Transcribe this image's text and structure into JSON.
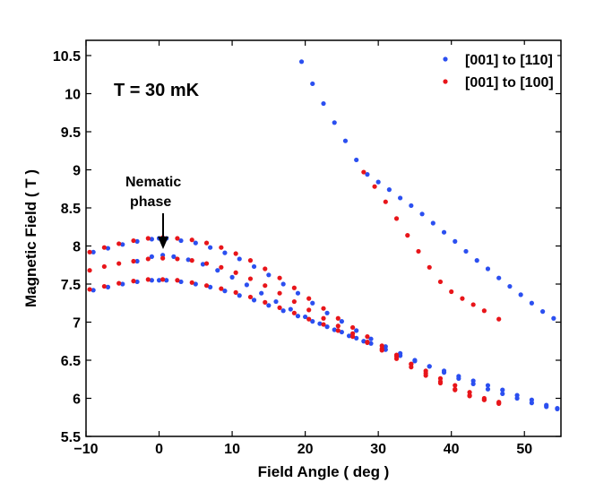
{
  "chart_data": {
    "type": "scatter",
    "title": "",
    "xlabel": "Field Angle ( deg )",
    "ylabel": "Magnetic Field ( T )",
    "xlim": [
      -10,
      55
    ],
    "ylim": [
      5.5,
      10.7
    ],
    "xticks": [
      -10,
      0,
      10,
      20,
      30,
      40,
      50
    ],
    "yticks": [
      5.5,
      6,
      6.5,
      7,
      7.5,
      8,
      8.5,
      9,
      9.5,
      10,
      10.5
    ],
    "xtick_labels": [
      "−10",
      "0",
      "10",
      "20",
      "30",
      "40",
      "50"
    ],
    "ytick_labels": [
      "5.5",
      "6",
      "6.5",
      "7",
      "7.5",
      "8",
      "8.5",
      "9",
      "9.5",
      "10",
      "10.5"
    ],
    "grid": false,
    "legend_position": "top-right",
    "annotations": {
      "temperature": "T = 30 mK",
      "nematic_line1": "Nematic",
      "nematic_line2": "phase",
      "arrow_target": [
        0.5,
        7.94
      ]
    },
    "series": [
      {
        "name": "[001] to [110]",
        "color": "#2b4ff0",
        "x": [
          -9,
          -7,
          -5,
          -3,
          -1,
          0,
          1,
          3,
          5,
          7,
          9,
          11,
          13,
          15,
          17,
          19,
          21,
          23,
          25,
          27,
          29,
          31,
          33,
          35,
          37,
          39,
          41,
          43,
          45,
          47,
          49,
          51,
          53,
          54.5,
          -9,
          -7,
          -5,
          -3,
          -1,
          0,
          1,
          3,
          5,
          7,
          9,
          11,
          13,
          15,
          17,
          19,
          21,
          23,
          25,
          27,
          29,
          31,
          33,
          35,
          37,
          39,
          41,
          43,
          45,
          47,
          49,
          51,
          53,
          54.5,
          -3,
          -1,
          0.5,
          2,
          4,
          6,
          8,
          10,
          12,
          14,
          16,
          18,
          20,
          22,
          24,
          26,
          28,
          19.5,
          21,
          22.5,
          24,
          25.5,
          27,
          28.5,
          30,
          31.5,
          33,
          34.5,
          36,
          37.5,
          39,
          40.5,
          42,
          43.5,
          45,
          46.5,
          48,
          49.5,
          51,
          52.5,
          54
        ],
        "y": [
          7.42,
          7.46,
          7.5,
          7.53,
          7.55,
          7.55,
          7.55,
          7.53,
          7.5,
          7.46,
          7.41,
          7.35,
          7.29,
          7.22,
          7.15,
          7.08,
          7.01,
          6.94,
          6.87,
          6.79,
          6.72,
          6.64,
          6.56,
          6.49,
          6.42,
          6.36,
          6.29,
          6.23,
          6.17,
          6.11,
          6.04,
          5.98,
          5.91,
          5.87,
          7.92,
          7.97,
          8.02,
          8.06,
          8.09,
          8.1,
          8.1,
          8.07,
          8.04,
          7.98,
          7.91,
          7.83,
          7.73,
          7.62,
          7.5,
          7.38,
          7.25,
          7.12,
          7.01,
          6.89,
          6.78,
          6.68,
          6.59,
          6.5,
          6.42,
          6.34,
          6.26,
          6.19,
          6.12,
          6.06,
          6.0,
          5.94,
          5.89,
          5.86,
          7.8,
          7.86,
          7.88,
          7.86,
          7.82,
          7.76,
          7.68,
          7.59,
          7.49,
          7.38,
          7.27,
          7.17,
          7.07,
          6.98,
          6.9,
          6.82,
          6.75,
          10.42,
          10.13,
          9.87,
          9.62,
          9.38,
          9.13,
          8.94,
          8.84,
          8.74,
          8.63,
          8.53,
          8.42,
          8.3,
          8.18,
          8.06,
          7.93,
          7.81,
          7.7,
          7.58,
          7.47,
          7.36,
          7.25,
          7.14,
          7.05
        ]
      },
      {
        "name": "[001] to [100]",
        "color": "#e8151a",
        "x": [
          -9.5,
          -7.5,
          -5.5,
          -3.5,
          -1.5,
          0.5,
          2.5,
          4.5,
          6.5,
          8.5,
          10.5,
          12.5,
          14.5,
          16.5,
          18.5,
          20.5,
          22.5,
          24.5,
          26.5,
          28.5,
          30.5,
          32.5,
          34.5,
          36.5,
          38.5,
          40.5,
          42.5,
          44.5,
          46.5,
          -9.5,
          -7.5,
          -5.5,
          -3.5,
          -1.5,
          0.5,
          2.5,
          4.5,
          6.5,
          8.5,
          10.5,
          12.5,
          14.5,
          16.5,
          18.5,
          20.5,
          22.5,
          24.5,
          26.5,
          28.5,
          30.5,
          32.5,
          34.5,
          36.5,
          38.5,
          40.5,
          42.5,
          44.5,
          46.5,
          -9.5,
          -7.5,
          -5.5,
          -3.5,
          -1.5,
          0.5,
          2.5,
          4.5,
          6.5,
          8.5,
          10.5,
          12.5,
          14.5,
          16.5,
          18.5,
          20.5,
          22.5,
          24.5,
          26.5,
          28.5,
          30.5,
          32.5,
          34.5,
          36.5,
          38.5,
          40.5,
          42.5,
          44.5,
          46.5,
          28,
          29.5,
          31,
          32.5,
          34,
          35.5,
          37,
          38.5,
          40,
          41.5,
          43,
          44.5,
          46.5
        ],
        "y": [
          7.43,
          7.47,
          7.51,
          7.54,
          7.56,
          7.56,
          7.55,
          7.52,
          7.48,
          7.44,
          7.39,
          7.33,
          7.26,
          7.19,
          7.12,
          7.04,
          6.97,
          6.89,
          6.81,
          6.73,
          6.65,
          6.55,
          6.45,
          6.36,
          6.26,
          6.17,
          6.08,
          6.0,
          5.93,
          7.68,
          7.73,
          7.77,
          7.8,
          7.83,
          7.84,
          7.83,
          7.81,
          7.77,
          7.72,
          7.65,
          7.57,
          7.48,
          7.38,
          7.27,
          7.16,
          7.05,
          6.95,
          6.85,
          6.74,
          6.63,
          6.52,
          6.41,
          6.3,
          6.2,
          6.11,
          6.03,
          5.98,
          5.94,
          7.92,
          7.98,
          8.03,
          8.07,
          8.1,
          8.11,
          8.1,
          8.08,
          8.04,
          7.98,
          7.9,
          7.81,
          7.7,
          7.58,
          7.45,
          7.31,
          7.18,
          7.05,
          6.93,
          6.81,
          6.69,
          6.57,
          6.45,
          6.33,
          6.22,
          6.12,
          6.04,
          5.98,
          5.95,
          8.97,
          8.78,
          8.58,
          8.36,
          8.14,
          7.93,
          7.72,
          7.53,
          7.4,
          7.31,
          7.23,
          7.15,
          7.04
        ]
      }
    ]
  }
}
